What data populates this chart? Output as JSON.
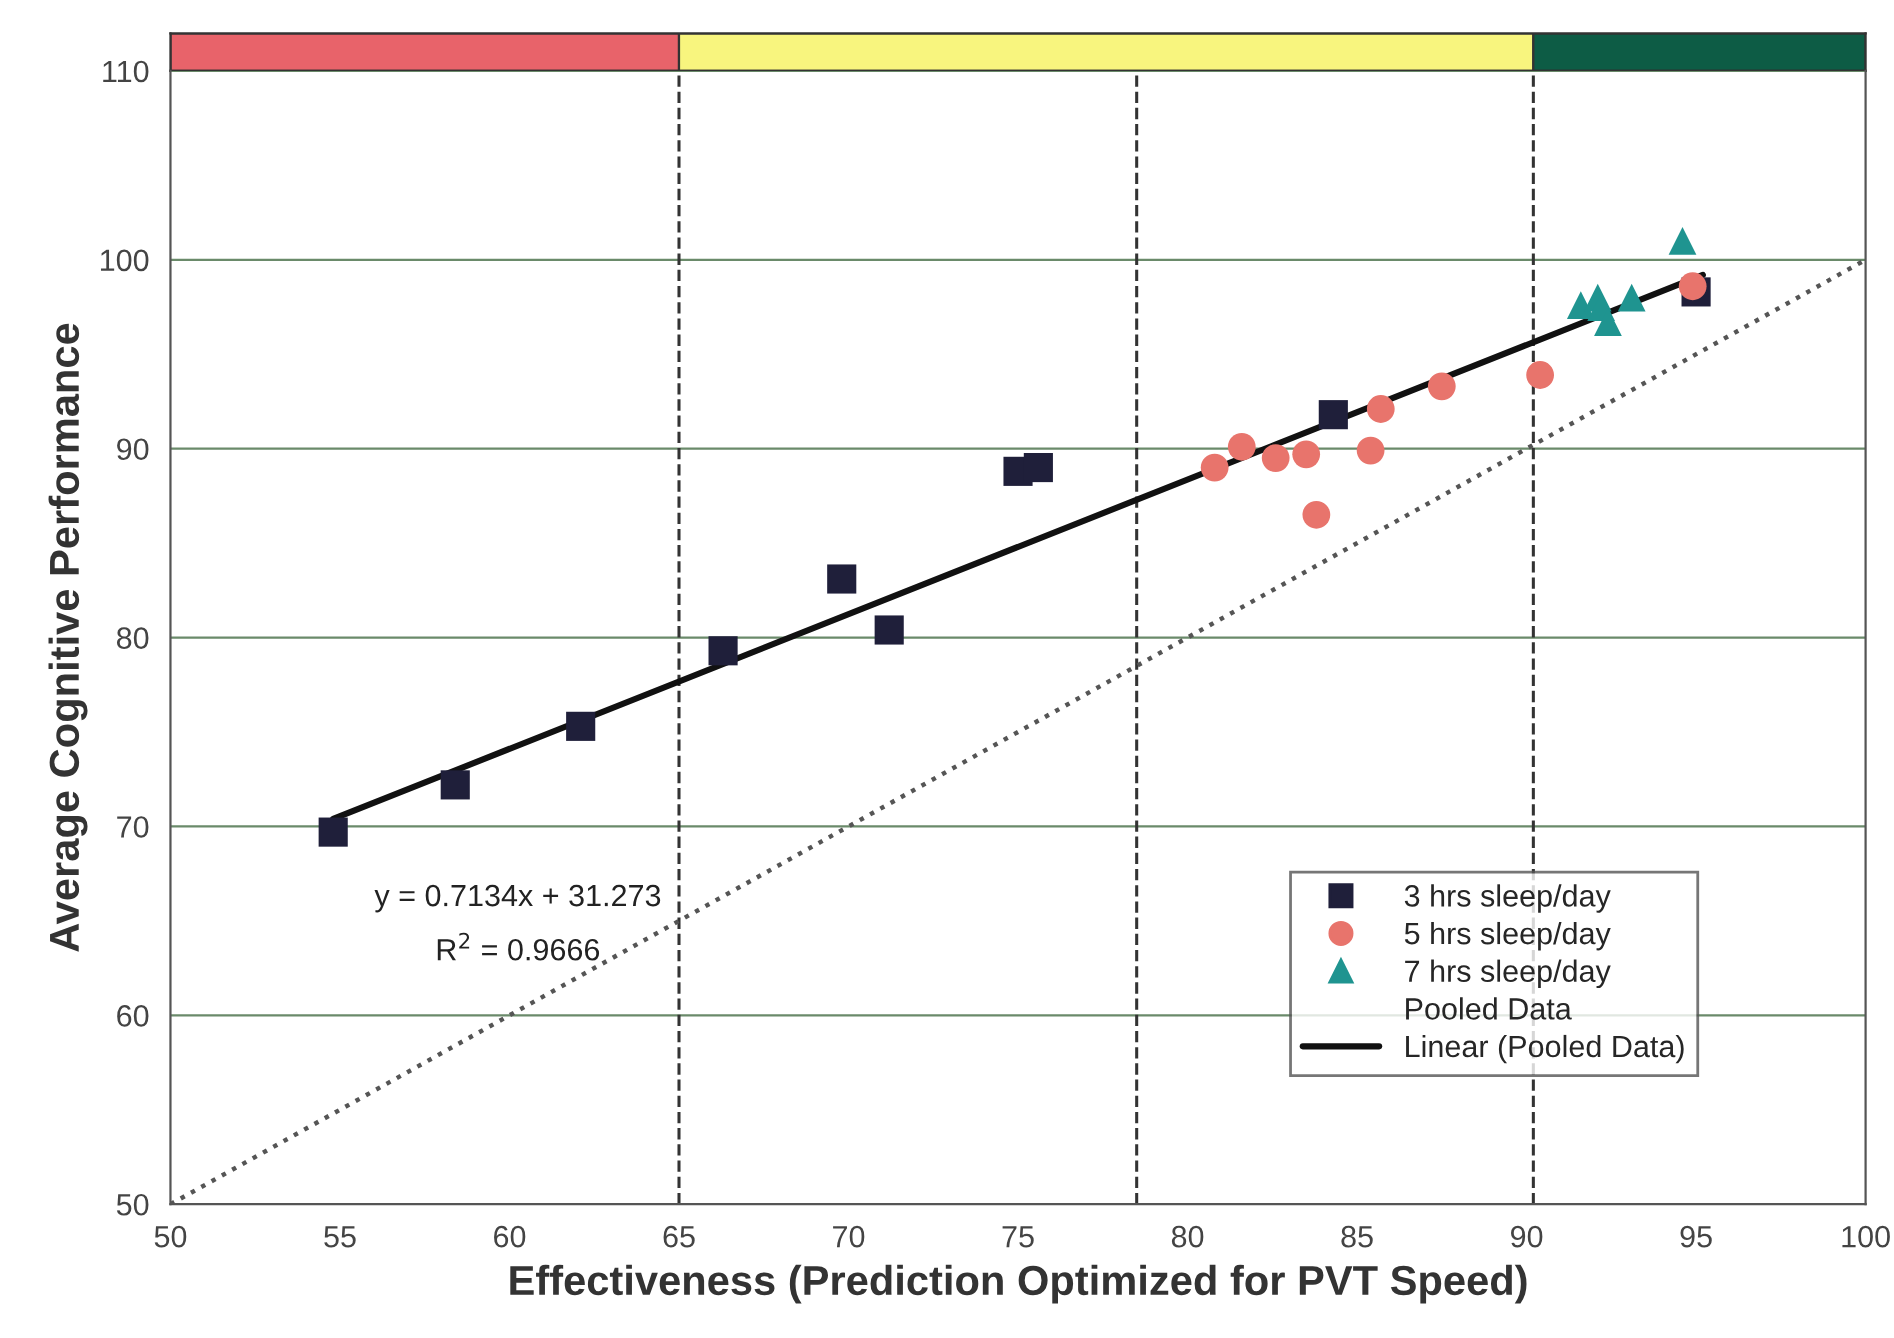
{
  "chart_data": {
    "type": "scatter",
    "xlabel": "Effectiveness (Prediction Optimized for PVT Speed)",
    "ylabel": "Average Cognitive Performance",
    "xlim": [
      50,
      100
    ],
    "xticks": [
      50,
      55,
      60,
      65,
      70,
      75,
      80,
      85,
      90,
      95,
      100
    ],
    "ylim": [
      50,
      110
    ],
    "yticks": [
      50,
      60,
      70,
      80,
      90,
      100,
      110
    ],
    "grid": "y",
    "legend": "bottom right",
    "series": [
      {
        "name": "3 hrs sleep/day",
        "marker": "square",
        "color": "#1f1f3a",
        "x": [
          54.8,
          58.4,
          62.1,
          66.3,
          69.8,
          71.2,
          75.0,
          75.6,
          84.3,
          95.0
        ],
        "values": [
          69.7,
          72.2,
          75.3,
          79.3,
          83.1,
          80.4,
          88.8,
          89.0,
          91.8,
          98.3
        ]
      },
      {
        "name": "5 hrs sleep/day",
        "marker": "circle",
        "color": "#e8746c",
        "x": [
          80.8,
          81.6,
          82.6,
          83.5,
          83.8,
          85.4,
          85.7,
          87.5,
          90.4,
          94.9
        ],
        "values": [
          89.0,
          90.1,
          89.5,
          89.7,
          86.5,
          89.9,
          92.1,
          93.3,
          93.9,
          98.6
        ]
      },
      {
        "name": "7 hrs sleep/day",
        "marker": "triangle",
        "color": "#1f9490",
        "x": [
          94.6,
          91.6,
          92.1,
          92.2,
          92.4,
          93.1
        ],
        "values": [
          101.0,
          97.6,
          98.0,
          97.5,
          96.7,
          98.0
        ]
      },
      {
        "name": "Pooled Data",
        "marker": "none"
      },
      {
        "name": "Linear (Pooled Data)",
        "type": "line",
        "marker": "none",
        "line_style": "solid",
        "color": "#111111",
        "x": [
          54.8,
          95.2
        ],
        "values": [
          70.4,
          99.2
        ]
      },
      {
        "type": "line",
        "marker": "none",
        "line_style": "dotted",
        "color": "#555555",
        "x": [
          50,
          100
        ],
        "values": [
          50,
          100
        ]
      }
    ],
    "ref_lines": [
      {
        "axis": "x",
        "value": 65,
        "line_style": "dashed",
        "color": "#333333"
      },
      {
        "axis": "x",
        "value": 78.5,
        "line_style": "dashed",
        "color": "#333333"
      },
      {
        "axis": "x",
        "value": 90.2,
        "line_style": "dashed",
        "color": "#333333"
      }
    ],
    "annotations": [
      "y = 0.7134x + 31.273",
      "R$^{2}$ = 0.9666"
    ]
  }
}
